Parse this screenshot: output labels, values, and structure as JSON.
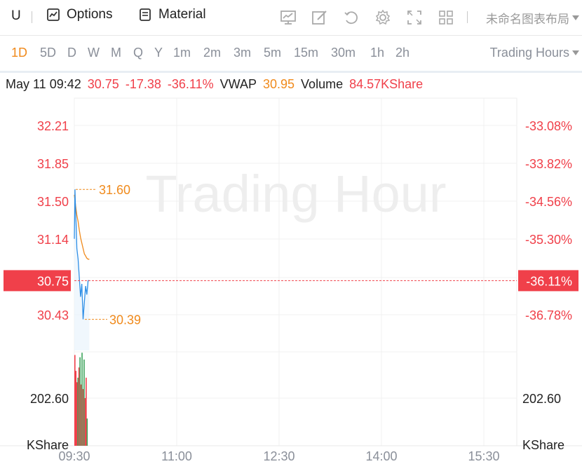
{
  "toolbar": {
    "symbol": "U",
    "options_label": "Options",
    "material_label": "Material",
    "layout_label": "未命名图表布局",
    "icons": [
      "chart-icon",
      "draw-icon",
      "undo-icon",
      "settings-icon",
      "fullscreen-icon",
      "grid-icon"
    ]
  },
  "periods": {
    "items": [
      "1D",
      "5D",
      "D",
      "W",
      "M",
      "Q",
      "Y",
      "1m",
      "2m",
      "3m",
      "5m",
      "15m",
      "30m",
      "1h",
      "2h"
    ],
    "active": "1D",
    "trading_hours_label": "Trading Hours"
  },
  "info": {
    "datetime": "May 11 09:42",
    "price": "30.75",
    "change": "-17.38",
    "change_pct": "-36.11%",
    "vwap_label": "VWAP",
    "vwap": "30.95",
    "volume_label": "Volume",
    "volume": "84.57KShare"
  },
  "colors": {
    "up": "#f0404a",
    "down": "#3ca35a",
    "accent": "#f08a1c",
    "price_line": "#2f8fe6"
  },
  "chart_data": {
    "type": "line",
    "watermark": "Trading Hour",
    "x_ticks": [
      "09:30",
      "11:00",
      "12:30",
      "14:00",
      "15:30"
    ],
    "price_ticks": [
      "32.21",
      "31.85",
      "31.50",
      "31.14",
      "30.43"
    ],
    "percent_ticks": [
      "-33.08%",
      "-33.82%",
      "-34.56%",
      "-35.30%",
      "-36.78%"
    ],
    "ylim": [
      30.1,
      32.45
    ],
    "current_price": 30.75,
    "current_price_label": "30.75",
    "current_pct_label": "-36.11%",
    "high_label": "31.60",
    "low_label": "30.39",
    "high": 31.6,
    "low": 30.39,
    "volume_tick": "202.60",
    "volume_unit": "KShare",
    "volume_ylim": [
      0,
      420
    ],
    "series": [
      {
        "name": "Price",
        "t": [
          0.0,
          0.5,
          1.0,
          1.5,
          2.0,
          3.0,
          4.0,
          5.0,
          6.0,
          7.0,
          8.0,
          9.0,
          10.0,
          11.0,
          12.0
        ],
        "values": [
          31.14,
          31.6,
          31.4,
          31.25,
          31.05,
          30.95,
          30.78,
          30.6,
          30.72,
          30.39,
          30.55,
          30.7,
          30.62,
          30.75,
          30.75
        ]
      },
      {
        "name": "VWAP",
        "t": [
          0,
          1,
          2,
          3,
          4,
          5,
          6,
          7,
          8,
          9,
          10,
          11,
          12
        ],
        "values": [
          31.55,
          31.45,
          31.36,
          31.3,
          31.22,
          31.15,
          31.1,
          31.05,
          31.0,
          30.98,
          30.96,
          30.95,
          30.95
        ]
      }
    ],
    "volume": {
      "t": [
        0,
        1,
        2,
        3,
        4,
        5,
        6,
        7,
        8,
        9,
        10,
        11,
        12
      ],
      "values": [
        400,
        330,
        280,
        300,
        345,
        390,
        270,
        410,
        250,
        380,
        210,
        300,
        120
      ],
      "up": [
        false,
        false,
        false,
        true,
        false,
        true,
        false,
        true,
        false,
        true,
        false,
        false,
        true
      ]
    }
  }
}
